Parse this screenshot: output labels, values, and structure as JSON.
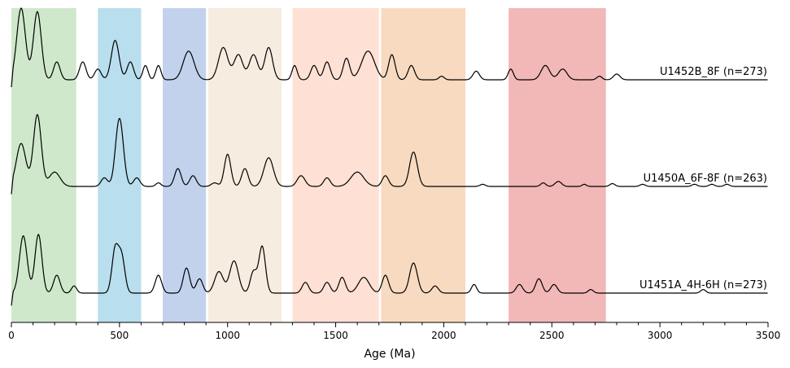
{
  "chart_data": {
    "type": "area",
    "title": "",
    "xlabel": "Age (Ma)",
    "ylabel": "",
    "xlim": [
      0,
      3500
    ],
    "x_ticks": [
      0,
      500,
      1000,
      1500,
      2000,
      2500,
      3000,
      3500
    ],
    "x_ticks_minor": [
      100,
      200,
      300,
      400,
      600,
      700,
      800,
      900,
      1100,
      1200,
      1300,
      1400,
      1600,
      1700,
      1800,
      1900,
      2100,
      2200,
      2300,
      2400,
      2600,
      2700,
      2800,
      2900,
      3100,
      3200,
      3300,
      3400
    ],
    "grid": false,
    "bands": [
      {
        "start": 0,
        "end": 300,
        "color": "#a8d5a0"
      },
      {
        "start": 400,
        "end": 600,
        "color": "#7fc3e0"
      },
      {
        "start": 700,
        "end": 900,
        "color": "#8fadde"
      },
      {
        "start": 910,
        "end": 1250,
        "color": "#f1dcc6"
      },
      {
        "start": 1300,
        "end": 1700,
        "color": "#ffc6b0"
      },
      {
        "start": 1710,
        "end": 2100,
        "color": "#f2bb8c"
      },
      {
        "start": 2300,
        "end": 2750,
        "color": "#e87b7b"
      }
    ],
    "series": [
      {
        "name": "U1452B_8F (n=273)",
        "peaks": [
          [
            45,
            1.0,
            20
          ],
          [
            120,
            0.95,
            18
          ],
          [
            210,
            0.25,
            15
          ],
          [
            330,
            0.25,
            15
          ],
          [
            400,
            0.15,
            15
          ],
          [
            480,
            0.55,
            18
          ],
          [
            550,
            0.25,
            15
          ],
          [
            620,
            0.2,
            12
          ],
          [
            680,
            0.2,
            12
          ],
          [
            820,
            0.4,
            25
          ],
          [
            980,
            0.45,
            22
          ],
          [
            1050,
            0.35,
            20
          ],
          [
            1120,
            0.35,
            20
          ],
          [
            1190,
            0.45,
            18
          ],
          [
            1310,
            0.2,
            12
          ],
          [
            1400,
            0.2,
            15
          ],
          [
            1460,
            0.25,
            15
          ],
          [
            1550,
            0.3,
            15
          ],
          [
            1650,
            0.4,
            30
          ],
          [
            1760,
            0.35,
            15
          ],
          [
            1850,
            0.2,
            15
          ],
          [
            1990,
            0.05,
            12
          ],
          [
            2150,
            0.12,
            15
          ],
          [
            2310,
            0.15,
            12
          ],
          [
            2470,
            0.2,
            20
          ],
          [
            2550,
            0.15,
            20
          ],
          [
            2720,
            0.05,
            12
          ],
          [
            2800,
            0.08,
            15
          ]
        ]
      },
      {
        "name": "U1450A_6F-8F (n=263)",
        "peaks": [
          [
            45,
            0.6,
            22
          ],
          [
            120,
            1.0,
            18
          ],
          [
            200,
            0.2,
            25
          ],
          [
            430,
            0.12,
            15
          ],
          [
            500,
            0.95,
            18
          ],
          [
            580,
            0.12,
            15
          ],
          [
            680,
            0.05,
            12
          ],
          [
            770,
            0.25,
            15
          ],
          [
            840,
            0.15,
            15
          ],
          [
            940,
            0.05,
            15
          ],
          [
            1000,
            0.45,
            15
          ],
          [
            1080,
            0.25,
            15
          ],
          [
            1190,
            0.4,
            22
          ],
          [
            1340,
            0.15,
            18
          ],
          [
            1460,
            0.12,
            15
          ],
          [
            1600,
            0.2,
            30
          ],
          [
            1730,
            0.15,
            15
          ],
          [
            1860,
            0.48,
            18
          ],
          [
            2180,
            0.03,
            12
          ],
          [
            2460,
            0.05,
            12
          ],
          [
            2530,
            0.07,
            15
          ],
          [
            2650,
            0.03,
            10
          ],
          [
            2780,
            0.04,
            12
          ],
          [
            2920,
            0.03,
            12
          ],
          [
            3160,
            0.03,
            12
          ],
          [
            3240,
            0.03,
            12
          ],
          [
            3310,
            0.03,
            12
          ]
        ]
      },
      {
        "name": "U1451A_4H-6H (n=273)",
        "peaks": [
          [
            55,
            0.8,
            18
          ],
          [
            125,
            0.82,
            16
          ],
          [
            210,
            0.25,
            15
          ],
          [
            290,
            0.1,
            12
          ],
          [
            480,
            0.6,
            15
          ],
          [
            510,
            0.5,
            15
          ],
          [
            680,
            0.25,
            15
          ],
          [
            810,
            0.35,
            15
          ],
          [
            870,
            0.2,
            15
          ],
          [
            960,
            0.3,
            20
          ],
          [
            1030,
            0.45,
            20
          ],
          [
            1120,
            0.3,
            15
          ],
          [
            1160,
            0.65,
            15
          ],
          [
            1360,
            0.15,
            15
          ],
          [
            1460,
            0.15,
            15
          ],
          [
            1530,
            0.22,
            15
          ],
          [
            1630,
            0.22,
            25
          ],
          [
            1730,
            0.25,
            15
          ],
          [
            1860,
            0.42,
            18
          ],
          [
            1960,
            0.1,
            15
          ],
          [
            2140,
            0.12,
            12
          ],
          [
            2350,
            0.12,
            15
          ],
          [
            2440,
            0.2,
            15
          ],
          [
            2510,
            0.12,
            15
          ],
          [
            2680,
            0.05,
            12
          ],
          [
            3200,
            0.05,
            12
          ]
        ]
      }
    ]
  }
}
